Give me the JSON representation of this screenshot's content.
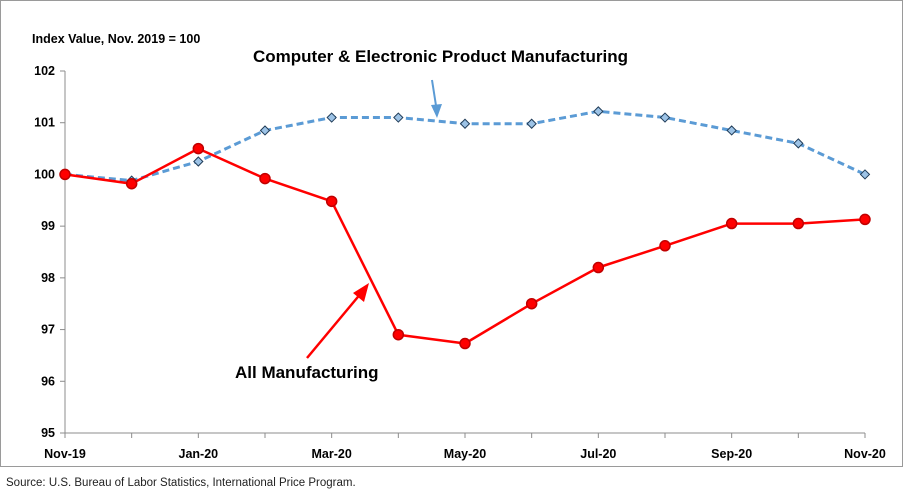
{
  "chart_data": {
    "type": "line",
    "title": "",
    "ylabel": "Index Value, Nov. 2019 = 100",
    "xlabel": "",
    "ylim": [
      95,
      102
    ],
    "yticks": [
      95,
      96,
      97,
      98,
      99,
      100,
      101,
      102
    ],
    "x": [
      "Nov-19",
      "Dec-19",
      "Jan-20",
      "Feb-20",
      "Mar-20",
      "Apr-20",
      "May-20",
      "Jun-20",
      "Jul-20",
      "Aug-20",
      "Sep-20",
      "Oct-20",
      "Nov-20"
    ],
    "xtick_labels": [
      "Nov-19",
      "Jan-20",
      "Mar-20",
      "May-20",
      "Jul-20",
      "Sep-20",
      "Nov-20"
    ],
    "grid": false,
    "series": [
      {
        "name": "Computer & Electronic Product Manufacturing",
        "color": "#5b9bd5",
        "marker_color": "#9dc3e6",
        "line_style": "dashed",
        "marker": "diamond",
        "values": [
          100.0,
          99.88,
          100.25,
          100.85,
          101.1,
          101.1,
          100.98,
          100.98,
          101.22,
          101.1,
          100.85,
          100.6,
          100.0
        ]
      },
      {
        "name": "All Manufacturing",
        "color": "#ff0000",
        "marker_color": "#c00000",
        "line_style": "solid",
        "marker": "circle",
        "values": [
          100.0,
          99.82,
          100.5,
          99.92,
          99.48,
          96.9,
          96.73,
          97.5,
          98.2,
          98.62,
          99.05,
          99.05,
          99.13
        ]
      }
    ],
    "annotations": [
      {
        "text": "Computer & Electronic Product Manufacturing",
        "series": 0
      },
      {
        "text": "All Manufacturing",
        "series": 1
      }
    ],
    "source": "Source: U.S. Bureau of Labor Statistics, International Price Program."
  }
}
